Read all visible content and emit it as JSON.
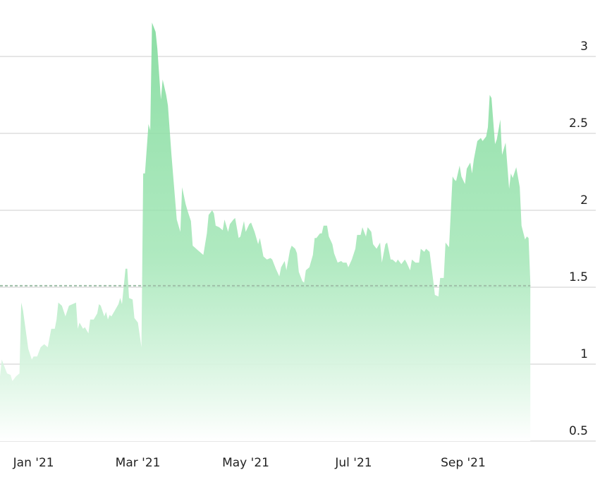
{
  "chart_data": {
    "type": "area",
    "title": "",
    "xlabel": "",
    "ylabel": "",
    "xlim": [
      "2020-12-13",
      "2021-11-15"
    ],
    "ylim": [
      0.5,
      3.37
    ],
    "grid": true,
    "y_ticks": [
      0.5,
      1,
      1.5,
      2,
      2.5,
      3
    ],
    "y_tick_labels": [
      "0.5",
      "1",
      "1.5",
      "2",
      "2.5",
      "3"
    ],
    "x_ticks": [
      "2021-01-01",
      "2021-03-01",
      "2021-05-01",
      "2021-07-01",
      "2021-09-01"
    ],
    "x_tick_labels": [
      "Jan '21",
      "Mar '21",
      "May '21",
      "Jul '21",
      "Sep '21"
    ],
    "reference_line": {
      "value": 1.51,
      "style": "dashed",
      "color": "#9fbfa8"
    },
    "colors": {
      "fill_top": "#86dca0",
      "fill_bottom": "#ffffff",
      "grid": "#dddddd"
    },
    "points": [
      [
        "2020-12-13",
        0.92
      ],
      [
        "2020-12-14",
        1.03
      ],
      [
        "2020-12-17",
        0.94
      ],
      [
        "2020-12-19",
        0.93
      ],
      [
        "2020-12-20",
        0.89
      ],
      [
        "2020-12-22",
        0.92
      ],
      [
        "2020-12-24",
        0.94
      ],
      [
        "2020-12-25",
        1.4
      ],
      [
        "2020-12-26",
        1.35
      ],
      [
        "2020-12-29",
        1.1
      ],
      [
        "2020-12-31",
        1.03
      ],
      [
        "2021-01-01",
        1.05
      ],
      [
        "2021-01-03",
        1.05
      ],
      [
        "2021-01-05",
        1.11
      ],
      [
        "2021-01-07",
        1.13
      ],
      [
        "2021-01-09",
        1.11
      ],
      [
        "2021-01-11",
        1.23
      ],
      [
        "2021-01-13",
        1.23
      ],
      [
        "2021-01-14",
        1.29
      ],
      [
        "2021-01-15",
        1.4
      ],
      [
        "2021-01-17",
        1.38
      ],
      [
        "2021-01-19",
        1.31
      ],
      [
        "2021-01-21",
        1.38
      ],
      [
        "2021-01-23",
        1.39
      ],
      [
        "2021-01-25",
        1.4
      ],
      [
        "2021-01-26",
        1.23
      ],
      [
        "2021-01-27",
        1.27
      ],
      [
        "2021-01-29",
        1.23
      ],
      [
        "2021-01-30",
        1.24
      ],
      [
        "2021-02-01",
        1.2
      ],
      [
        "2021-02-02",
        1.29
      ],
      [
        "2021-02-04",
        1.29
      ],
      [
        "2021-02-06",
        1.33
      ],
      [
        "2021-02-07",
        1.39
      ],
      [
        "2021-02-08",
        1.38
      ],
      [
        "2021-02-10",
        1.31
      ],
      [
        "2021-02-11",
        1.34
      ],
      [
        "2021-02-12",
        1.29
      ],
      [
        "2021-02-13",
        1.32
      ],
      [
        "2021-02-14",
        1.31
      ],
      [
        "2021-02-16",
        1.35
      ],
      [
        "2021-02-18",
        1.39
      ],
      [
        "2021-02-19",
        1.43
      ],
      [
        "2021-02-20",
        1.39
      ],
      [
        "2021-02-22",
        1.62
      ],
      [
        "2021-02-23",
        1.62
      ],
      [
        "2021-02-24",
        1.43
      ],
      [
        "2021-02-26",
        1.42
      ],
      [
        "2021-02-27",
        1.3
      ],
      [
        "2021-03-01",
        1.27
      ],
      [
        "2021-03-03",
        1.11
      ],
      [
        "2021-03-04",
        2.24
      ],
      [
        "2021-03-05",
        2.24
      ],
      [
        "2021-03-07",
        2.56
      ],
      [
        "2021-03-08",
        2.52
      ],
      [
        "2021-03-09",
        3.22
      ],
      [
        "2021-03-11",
        3.16
      ],
      [
        "2021-03-12",
        3.05
      ],
      [
        "2021-03-14",
        2.72
      ],
      [
        "2021-03-15",
        2.85
      ],
      [
        "2021-03-17",
        2.75
      ],
      [
        "2021-03-18",
        2.68
      ],
      [
        "2021-03-20",
        2.36
      ],
      [
        "2021-03-22",
        2.08
      ],
      [
        "2021-03-23",
        1.94
      ],
      [
        "2021-03-25",
        1.86
      ],
      [
        "2021-03-26",
        2.15
      ],
      [
        "2021-03-28",
        2.04
      ],
      [
        "2021-03-29",
        2.0
      ],
      [
        "2021-03-31",
        1.93
      ],
      [
        "2021-04-01",
        1.77
      ],
      [
        "2021-04-03",
        1.75
      ],
      [
        "2021-04-04",
        1.74
      ],
      [
        "2021-04-07",
        1.71
      ],
      [
        "2021-04-09",
        1.85
      ],
      [
        "2021-04-10",
        1.97
      ],
      [
        "2021-04-12",
        2.0
      ],
      [
        "2021-04-13",
        1.98
      ],
      [
        "2021-04-14",
        1.9
      ],
      [
        "2021-04-16",
        1.89
      ],
      [
        "2021-04-18",
        1.87
      ],
      [
        "2021-04-19",
        1.94
      ],
      [
        "2021-04-21",
        1.86
      ],
      [
        "2021-04-22",
        1.91
      ],
      [
        "2021-04-24",
        1.94
      ],
      [
        "2021-04-25",
        1.95
      ],
      [
        "2021-04-27",
        1.82
      ],
      [
        "2021-04-28",
        1.83
      ],
      [
        "2021-04-30",
        1.93
      ],
      [
        "2021-05-01",
        1.86
      ],
      [
        "2021-05-03",
        1.91
      ],
      [
        "2021-05-04",
        1.92
      ],
      [
        "2021-05-06",
        1.86
      ],
      [
        "2021-05-08",
        1.78
      ],
      [
        "2021-05-09",
        1.82
      ],
      [
        "2021-05-11",
        1.7
      ],
      [
        "2021-05-13",
        1.68
      ],
      [
        "2021-05-15",
        1.69
      ],
      [
        "2021-05-16",
        1.68
      ],
      [
        "2021-05-18",
        1.62
      ],
      [
        "2021-05-20",
        1.57
      ],
      [
        "2021-05-21",
        1.63
      ],
      [
        "2021-05-23",
        1.67
      ],
      [
        "2021-05-24",
        1.61
      ],
      [
        "2021-05-26",
        1.74
      ],
      [
        "2021-05-27",
        1.77
      ],
      [
        "2021-05-29",
        1.75
      ],
      [
        "2021-05-30",
        1.72
      ],
      [
        "2021-05-31",
        1.6
      ],
      [
        "2021-06-02",
        1.54
      ],
      [
        "2021-06-03",
        1.53
      ],
      [
        "2021-06-04",
        1.61
      ],
      [
        "2021-06-06",
        1.63
      ],
      [
        "2021-06-08",
        1.71
      ],
      [
        "2021-06-09",
        1.82
      ],
      [
        "2021-06-10",
        1.82
      ],
      [
        "2021-06-12",
        1.85
      ],
      [
        "2021-06-13",
        1.85
      ],
      [
        "2021-06-14",
        1.9
      ],
      [
        "2021-06-16",
        1.9
      ],
      [
        "2021-06-17",
        1.83
      ],
      [
        "2021-06-19",
        1.78
      ],
      [
        "2021-06-20",
        1.72
      ],
      [
        "2021-06-22",
        1.66
      ],
      [
        "2021-06-24",
        1.67
      ],
      [
        "2021-06-25",
        1.66
      ],
      [
        "2021-06-27",
        1.66
      ],
      [
        "2021-06-28",
        1.63
      ],
      [
        "2021-06-30",
        1.68
      ],
      [
        "2021-07-02",
        1.75
      ],
      [
        "2021-07-03",
        1.84
      ],
      [
        "2021-07-05",
        1.84
      ],
      [
        "2021-07-06",
        1.89
      ],
      [
        "2021-07-08",
        1.83
      ],
      [
        "2021-07-09",
        1.89
      ],
      [
        "2021-07-11",
        1.86
      ],
      [
        "2021-07-12",
        1.78
      ],
      [
        "2021-07-14",
        1.75
      ],
      [
        "2021-07-16",
        1.79
      ],
      [
        "2021-07-17",
        1.66
      ],
      [
        "2021-07-19",
        1.78
      ],
      [
        "2021-07-20",
        1.79
      ],
      [
        "2021-07-22",
        1.68
      ],
      [
        "2021-07-23",
        1.68
      ],
      [
        "2021-07-25",
        1.66
      ],
      [
        "2021-07-26",
        1.68
      ],
      [
        "2021-07-28",
        1.65
      ],
      [
        "2021-07-30",
        1.68
      ],
      [
        "2021-07-31",
        1.66
      ],
      [
        "2021-08-02",
        1.61
      ],
      [
        "2021-08-03",
        1.68
      ],
      [
        "2021-08-05",
        1.66
      ],
      [
        "2021-08-07",
        1.66
      ],
      [
        "2021-08-08",
        1.75
      ],
      [
        "2021-08-10",
        1.73
      ],
      [
        "2021-08-11",
        1.75
      ],
      [
        "2021-08-13",
        1.73
      ],
      [
        "2021-08-15",
        1.55
      ],
      [
        "2021-08-16",
        1.45
      ],
      [
        "2021-08-18",
        1.44
      ],
      [
        "2021-08-19",
        1.56
      ],
      [
        "2021-08-21",
        1.56
      ],
      [
        "2021-08-22",
        1.79
      ],
      [
        "2021-08-24",
        1.76
      ],
      [
        "2021-08-26",
        2.22
      ],
      [
        "2021-08-27",
        2.2
      ],
      [
        "2021-08-28",
        2.19
      ],
      [
        "2021-08-30",
        2.29
      ],
      [
        "2021-08-31",
        2.22
      ],
      [
        "2021-09-02",
        2.17
      ],
      [
        "2021-09-03",
        2.27
      ],
      [
        "2021-09-05",
        2.31
      ],
      [
        "2021-09-06",
        2.24
      ],
      [
        "2021-09-07",
        2.33
      ],
      [
        "2021-09-09",
        2.45
      ],
      [
        "2021-09-11",
        2.47
      ],
      [
        "2021-09-12",
        2.45
      ],
      [
        "2021-09-14",
        2.48
      ],
      [
        "2021-09-15",
        2.54
      ],
      [
        "2021-09-16",
        2.75
      ],
      [
        "2021-09-17",
        2.73
      ],
      [
        "2021-09-19",
        2.43
      ],
      [
        "2021-09-20",
        2.46
      ],
      [
        "2021-09-22",
        2.59
      ],
      [
        "2021-09-23",
        2.36
      ],
      [
        "2021-09-25",
        2.44
      ],
      [
        "2021-09-27",
        2.14
      ],
      [
        "2021-09-28",
        2.24
      ],
      [
        "2021-09-29",
        2.21
      ],
      [
        "2021-10-01",
        2.28
      ],
      [
        "2021-10-03",
        2.15
      ],
      [
        "2021-10-04",
        1.9
      ],
      [
        "2021-10-06",
        1.81
      ],
      [
        "2021-10-07",
        1.83
      ],
      [
        "2021-10-08",
        1.82
      ],
      [
        "2021-10-09",
        1.53
      ]
    ]
  }
}
